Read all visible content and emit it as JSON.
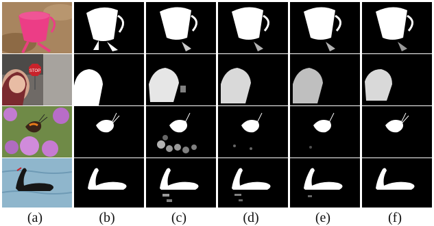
{
  "figure": {
    "columns": [
      {
        "label": "(a)",
        "kind": "input-image"
      },
      {
        "label": "(b)",
        "kind": "saliency-mask"
      },
      {
        "label": "(c)",
        "kind": "saliency-mask"
      },
      {
        "label": "(d)",
        "kind": "saliency-mask"
      },
      {
        "label": "(e)",
        "kind": "saliency-mask"
      },
      {
        "label": "(f)",
        "kind": "saliency-mask"
      }
    ],
    "rows": [
      {
        "subject": "pink toy bucket in sand",
        "sign_text": ""
      },
      {
        "subject": "child near stop sign",
        "sign_text": "STOP"
      },
      {
        "subject": "butterfly on pink flowers",
        "sign_text": ""
      },
      {
        "subject": "black swan on water",
        "sign_text": ""
      }
    ],
    "colors": {
      "background": "#ffffff",
      "mask_foreground": "#ffffff",
      "mask_background": "#000000",
      "caption_text": "#111111"
    }
  }
}
